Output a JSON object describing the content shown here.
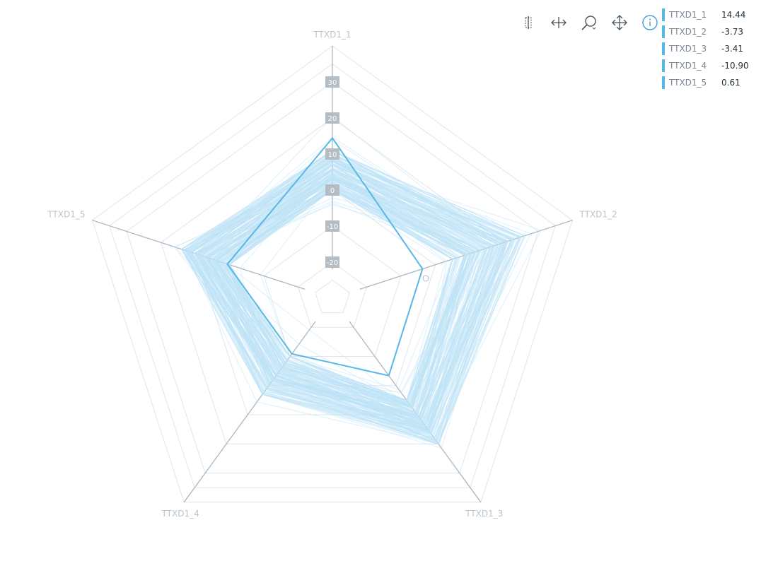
{
  "chart_data": {
    "type": "radar",
    "axes": [
      "TTXD1_1",
      "TTXD1_2",
      "TTXD1_3",
      "TTXD1_4",
      "TTXD1_5"
    ],
    "range": [
      -30,
      40
    ],
    "ticks": [
      -20,
      -10,
      0,
      10,
      20,
      30
    ],
    "tick_labels": [
      "-20",
      "-10",
      "0",
      "10",
      "20",
      "30"
    ],
    "grid": true,
    "highlighted_series": {
      "values": [
        14.44,
        -3.73,
        -3.41,
        -10.9,
        0.61
      ]
    },
    "background_band": {
      "low": [
        0,
        5,
        5,
        -10,
        0
      ],
      "high": [
        11,
        26,
        20,
        3,
        14
      ],
      "count": 180
    },
    "colors": {
      "highlight": "#57b8e6",
      "band": "#bde4f7",
      "grid": "#dfe5eb",
      "axis": "#aab6c2",
      "tick_box": "#b4bcc4"
    }
  },
  "legend": {
    "items": [
      {
        "label": "TTXD1_1",
        "value": "14.44"
      },
      {
        "label": "TTXD1_2",
        "value": "-3.73"
      },
      {
        "label": "TTXD1_3",
        "value": "-3.41"
      },
      {
        "label": "TTXD1_4",
        "value": "-10.90"
      },
      {
        "label": "TTXD1_5",
        "value": "0.61"
      }
    ]
  },
  "toolbar": {
    "tools": [
      {
        "icon": "brush-select-icon"
      },
      {
        "icon": "pan-horizontal-icon"
      },
      {
        "icon": "zoom-icon"
      },
      {
        "icon": "move-icon"
      },
      {
        "icon": "info-icon",
        "active": true
      }
    ]
  }
}
